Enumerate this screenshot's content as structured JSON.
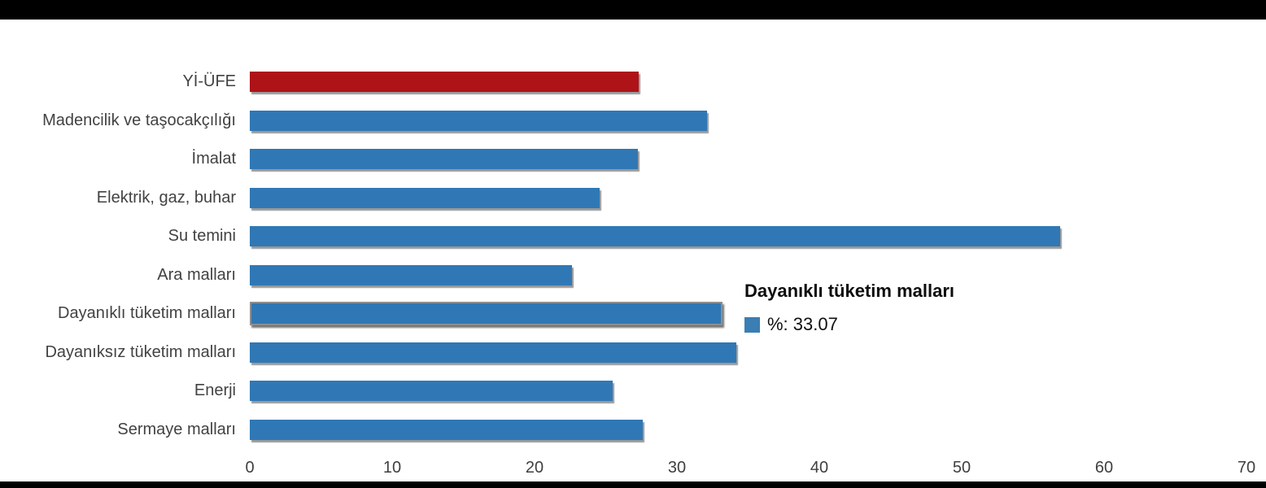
{
  "chart_data": {
    "type": "bar",
    "orientation": "horizontal",
    "title": "",
    "categories": [
      "Yİ-ÜFE",
      "Madencilik ve taşocakçılığı",
      "İmalat",
      "Elektrik, gaz, buhar",
      "Su temini",
      "Ara malları",
      "Dayanıklı tüketim malları",
      "Dayanıksız tüketim malları",
      "Enerji",
      "Sermaye malları"
    ],
    "values": [
      27.29,
      32.11,
      27.26,
      24.57,
      56.91,
      22.63,
      33.07,
      34.17,
      25.49,
      27.6
    ],
    "ylabel": "",
    "xlabel": "",
    "xlim": [
      0,
      70
    ],
    "x_tick_labels": [
      "0",
      "10",
      "20",
      "30",
      "40",
      "50",
      "60",
      "70"
    ],
    "grid": false,
    "legend_position": "none",
    "bar_color": "#3078b5",
    "highlight_bar": {
      "category": "Yİ-ÜFE",
      "color": "#ae1318"
    },
    "hovered_bar": {
      "category": "Dayanıklı tüketim malları",
      "value": 33.07
    }
  },
  "tooltip": {
    "title": "Dayanıklı tüketim malları",
    "value_text": "%: 33.07",
    "marker_color": "#3a7eb4"
  },
  "frame": {
    "strip_color": "#000000"
  }
}
